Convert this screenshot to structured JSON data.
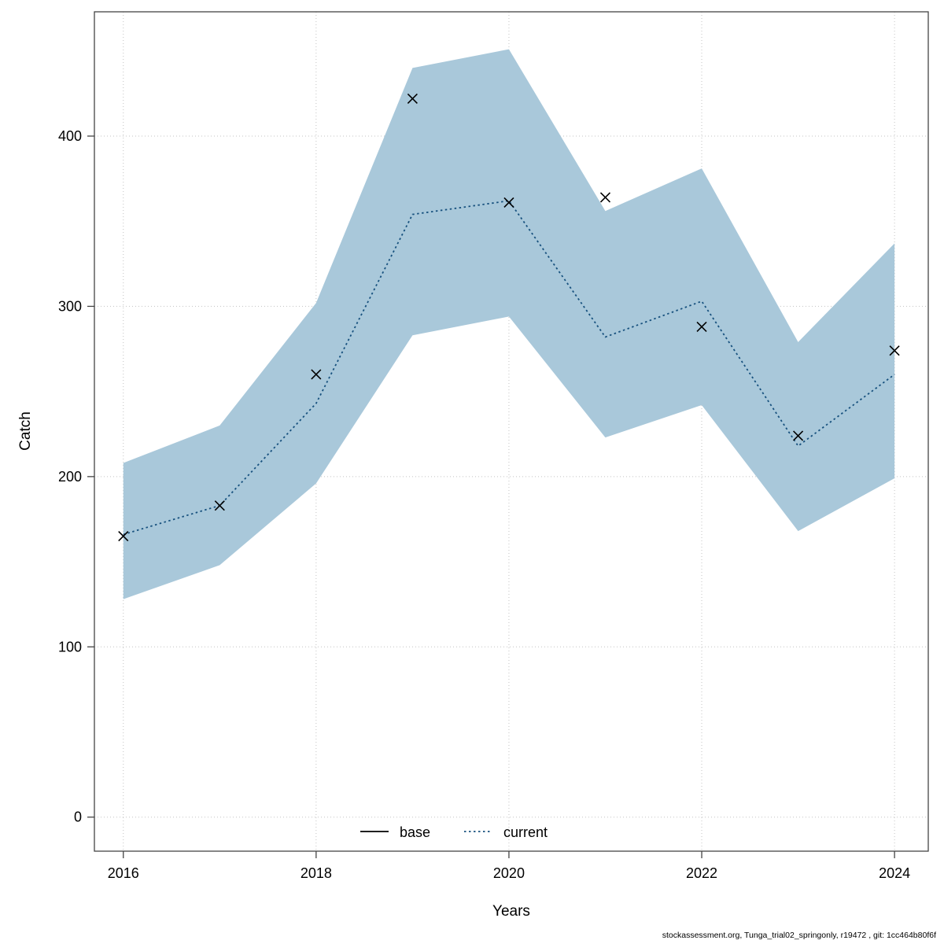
{
  "page": {
    "footer": "stockassessment.org, Tunga_trial02_springonly, r19472 , git: 1cc464b80f6f"
  },
  "chart_data": {
    "type": "line",
    "title": "",
    "xlabel": "Years",
    "ylabel": "Catch",
    "x": [
      2016,
      2017,
      2018,
      2019,
      2020,
      2021,
      2022,
      2023,
      2024
    ],
    "xticks": [
      2016,
      2018,
      2020,
      2022,
      2024
    ],
    "yticks": [
      0,
      100,
      200,
      300,
      400
    ],
    "xlim": [
      2015.7,
      2024.35
    ],
    "ylim": [
      -20,
      473
    ],
    "grid": true,
    "grid_style": "dotted",
    "legend_position": "bottom-center",
    "legend": [
      {
        "label": "base",
        "style": "solid",
        "color": "#000000"
      },
      {
        "label": "current",
        "style": "dotted",
        "color": "#17517e"
      }
    ],
    "series": [
      {
        "name": "observed_catch_points",
        "type": "scatter",
        "marker": "x",
        "color": "#000000",
        "values": [
          165,
          183,
          260,
          422,
          361,
          364,
          288,
          224,
          274
        ]
      },
      {
        "name": "current_estimate",
        "type": "line",
        "style": "dotted",
        "color": "#17517e",
        "values": [
          166,
          183,
          243,
          354,
          362,
          282,
          303,
          218,
          260
        ]
      },
      {
        "name": "confidence_band_upper",
        "type": "area-edge",
        "color": "#a9c8da",
        "values": [
          208,
          230,
          302,
          440,
          451,
          356,
          381,
          279,
          337
        ]
      },
      {
        "name": "confidence_band_lower",
        "type": "area-edge",
        "color": "#a9c8da",
        "values": [
          128,
          148,
          196,
          283,
          294,
          223,
          242,
          168,
          199
        ]
      }
    ],
    "band_color": "#a9c8da",
    "line_color": "#17517e",
    "marker_color": "#000000",
    "grid_color": "#c3c3c3",
    "box_color": "#444444"
  }
}
